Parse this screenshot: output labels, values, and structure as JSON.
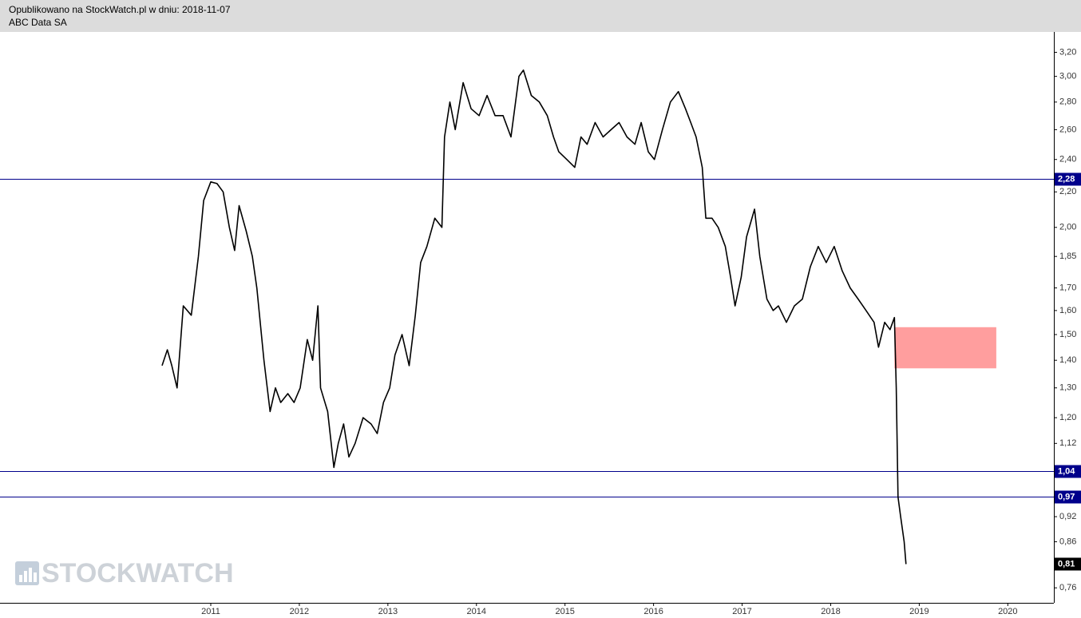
{
  "header": {
    "line1": "Opublikowano na StockWatch.pl w dniu: 2018-11-07",
    "line2": "ABC Data SA"
  },
  "chart_data": {
    "type": "line",
    "log_scale": true,
    "watermark": "STOCKWATCH",
    "x": [
      2010.45,
      2010.51,
      2010.56,
      2010.62,
      2010.69,
      2010.78,
      2010.86,
      2010.92,
      2011.0,
      2011.07,
      2011.14,
      2011.21,
      2011.27,
      2011.32,
      2011.4,
      2011.47,
      2011.52,
      2011.6,
      2011.67,
      2011.73,
      2011.79,
      2011.87,
      2011.94,
      2012.01,
      2012.09,
      2012.15,
      2012.21,
      2012.24,
      2012.32,
      2012.39,
      2012.44,
      2012.5,
      2012.56,
      2012.63,
      2012.72,
      2012.81,
      2012.88,
      2012.95,
      2013.02,
      2013.08,
      2013.16,
      2013.24,
      2013.31,
      2013.37,
      2013.44,
      2013.53,
      2013.61,
      2013.64,
      2013.7,
      2013.76,
      2013.85,
      2013.94,
      2014.03,
      2014.12,
      2014.21,
      2014.3,
      2014.39,
      2014.48,
      2014.53,
      2014.62,
      2014.71,
      2014.8,
      2014.87,
      2014.93,
      2015.02,
      2015.11,
      2015.18,
      2015.25,
      2015.34,
      2015.43,
      2015.52,
      2015.61,
      2015.7,
      2015.79,
      2015.86,
      2015.94,
      2016.01,
      2016.1,
      2016.19,
      2016.28,
      2016.36,
      2016.42,
      2016.48,
      2016.55,
      2016.59,
      2016.66,
      2016.73,
      2016.81,
      2016.87,
      2016.92,
      2016.99,
      2017.05,
      2017.14,
      2017.2,
      2017.28,
      2017.35,
      2017.41,
      2017.5,
      2017.59,
      2017.68,
      2017.77,
      2017.86,
      2017.95,
      2018.04,
      2018.13,
      2018.22,
      2018.31,
      2018.4,
      2018.49,
      2018.54,
      2018.61,
      2018.67,
      2018.72,
      2018.74,
      2018.76,
      2018.79,
      2018.83,
      2018.85
    ],
    "series": [
      {
        "name": "ABC Data SA",
        "color": "#000000",
        "values": [
          1.38,
          1.44,
          1.38,
          1.3,
          1.62,
          1.58,
          1.85,
          2.15,
          2.26,
          2.25,
          2.2,
          2.0,
          1.88,
          2.12,
          1.98,
          1.85,
          1.7,
          1.4,
          1.22,
          1.3,
          1.25,
          1.28,
          1.25,
          1.3,
          1.48,
          1.4,
          1.62,
          1.3,
          1.22,
          1.05,
          1.12,
          1.18,
          1.08,
          1.12,
          1.2,
          1.18,
          1.15,
          1.25,
          1.3,
          1.42,
          1.5,
          1.38,
          1.58,
          1.82,
          1.9,
          2.05,
          2.0,
          2.55,
          2.8,
          2.6,
          2.95,
          2.75,
          2.7,
          2.85,
          2.7,
          2.7,
          2.55,
          3.0,
          3.05,
          2.85,
          2.8,
          2.7,
          2.55,
          2.45,
          2.4,
          2.35,
          2.55,
          2.5,
          2.65,
          2.55,
          2.6,
          2.65,
          2.55,
          2.5,
          2.65,
          2.45,
          2.4,
          2.6,
          2.8,
          2.88,
          2.75,
          2.65,
          2.55,
          2.35,
          2.05,
          2.05,
          2.0,
          1.9,
          1.75,
          1.62,
          1.75,
          1.95,
          2.1,
          1.85,
          1.65,
          1.6,
          1.62,
          1.55,
          1.62,
          1.65,
          1.8,
          1.9,
          1.82,
          1.9,
          1.78,
          1.7,
          1.65,
          1.6,
          1.55,
          1.45,
          1.55,
          1.52,
          1.57,
          1.3,
          0.97,
          0.92,
          0.86,
          0.81
        ]
      }
    ],
    "xlim": [
      2008.62,
      2020.52
    ],
    "xticks": [
      2011,
      2012,
      2013,
      2014,
      2015,
      2016,
      2017,
      2018,
      2019,
      2020
    ],
    "ylim": [
      0.73,
      3.38
    ],
    "yticks": [
      {
        "value": 0.76,
        "label": "0,76"
      },
      {
        "value": 0.86,
        "label": "0,86"
      },
      {
        "value": 0.92,
        "label": "0,92"
      },
      {
        "value": 1.12,
        "label": "1,12"
      },
      {
        "value": 1.2,
        "label": "1,20"
      },
      {
        "value": 1.3,
        "label": "1,30"
      },
      {
        "value": 1.4,
        "label": "1,40"
      },
      {
        "value": 1.5,
        "label": "1,50"
      },
      {
        "value": 1.6,
        "label": "1,60"
      },
      {
        "value": 1.7,
        "label": "1,70"
      },
      {
        "value": 1.85,
        "label": "1,85"
      },
      {
        "value": 2.0,
        "label": "2,00"
      },
      {
        "value": 2.2,
        "label": "2,20"
      },
      {
        "value": 2.4,
        "label": "2,40"
      },
      {
        "value": 2.6,
        "label": "2,60"
      },
      {
        "value": 2.8,
        "label": "2,80"
      },
      {
        "value": 3.0,
        "label": "3,00"
      },
      {
        "value": 3.2,
        "label": "3,20"
      }
    ],
    "levels": [
      {
        "value": 2.28,
        "label": "2,28"
      },
      {
        "value": 1.04,
        "label": "1,04"
      },
      {
        "value": 0.97,
        "label": "0,97"
      }
    ],
    "level_color": "#00008b",
    "last_price": {
      "value": 0.81,
      "label": "0,81"
    },
    "zone": {
      "x": [
        2018.72,
        2019.87
      ],
      "y": [
        1.37,
        1.53
      ],
      "color": "#ff9e9e"
    }
  }
}
